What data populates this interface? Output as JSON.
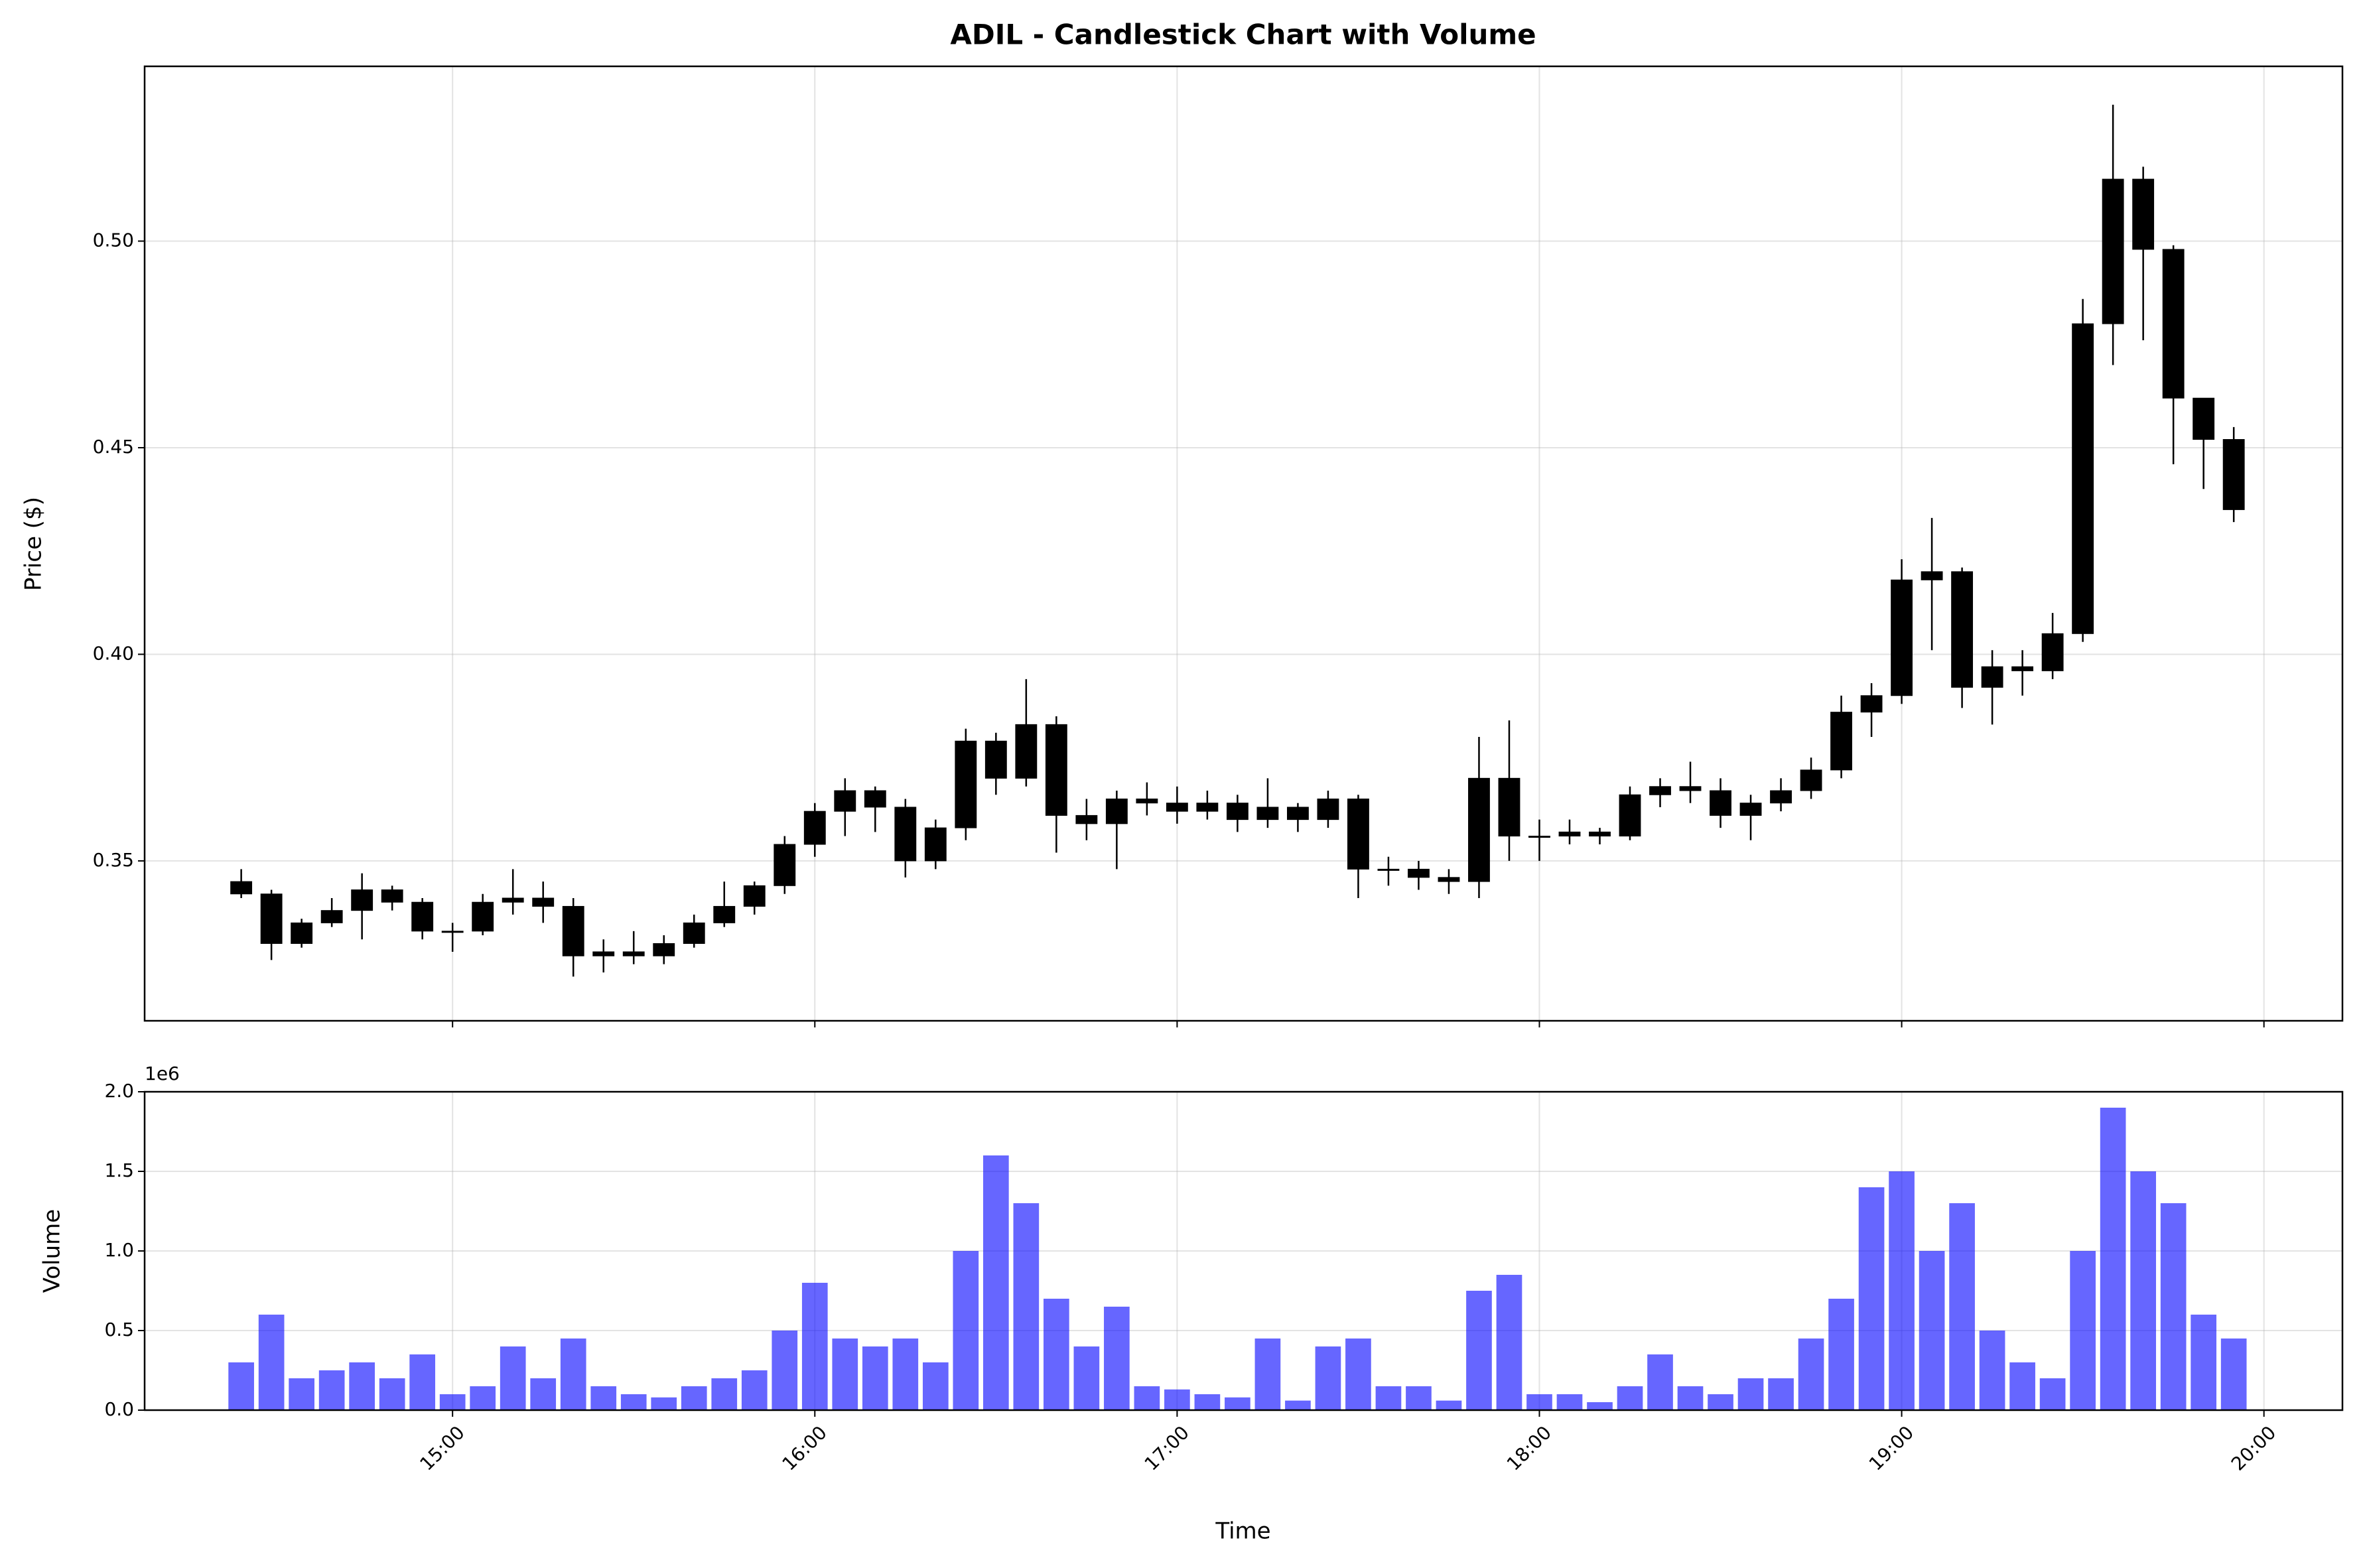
{
  "chart_data": {
    "type": "candlestick",
    "title": "ADIL - Candlestick Chart with Volume",
    "xlabel": "Time",
    "ylabel": "Price ($)",
    "color": "#000000",
    "grid": true,
    "x": [
      "14:25",
      "14:30",
      "14:35",
      "14:40",
      "14:45",
      "14:50",
      "14:55",
      "15:00",
      "15:05",
      "15:10",
      "15:15",
      "15:20",
      "15:25",
      "15:30",
      "15:35",
      "15:40",
      "15:45",
      "15:50",
      "15:55",
      "16:00",
      "16:05",
      "16:10",
      "16:15",
      "16:20",
      "16:25",
      "16:30",
      "16:35",
      "16:40",
      "16:45",
      "16:50",
      "16:55",
      "17:00",
      "17:05",
      "17:10",
      "17:15",
      "17:20",
      "17:25",
      "17:30",
      "17:35",
      "17:40",
      "17:45",
      "17:50",
      "17:55",
      "18:00",
      "18:05",
      "18:10",
      "18:15",
      "18:20",
      "18:25",
      "18:30",
      "18:35",
      "18:40",
      "18:45",
      "18:50",
      "18:55",
      "19:00",
      "19:05",
      "19:10",
      "19:15",
      "19:20",
      "19:25",
      "19:30",
      "19:35",
      "19:40",
      "19:45",
      "19:50",
      "19:55"
    ],
    "open": [
      0.345,
      0.342,
      0.33,
      0.335,
      0.338,
      0.343,
      0.34,
      0.333,
      0.333,
      0.34,
      0.341,
      0.339,
      0.327,
      0.328,
      0.327,
      0.33,
      0.335,
      0.339,
      0.344,
      0.354,
      0.362,
      0.367,
      0.363,
      0.35,
      0.358,
      0.379,
      0.37,
      0.383,
      0.361,
      0.359,
      0.365,
      0.364,
      0.362,
      0.364,
      0.36,
      0.363,
      0.36,
      0.365,
      0.348,
      0.348,
      0.346,
      0.345,
      0.37,
      0.356,
      0.356,
      0.357,
      0.356,
      0.366,
      0.368,
      0.367,
      0.361,
      0.364,
      0.367,
      0.372,
      0.386,
      0.39,
      0.418,
      0.42,
      0.392,
      0.397,
      0.396,
      0.405,
      0.48,
      0.515,
      0.498,
      0.462,
      0.452
    ],
    "high": [
      0.348,
      0.343,
      0.336,
      0.341,
      0.347,
      0.344,
      0.341,
      0.335,
      0.342,
      0.348,
      0.345,
      0.341,
      0.331,
      0.333,
      0.332,
      0.337,
      0.345,
      0.345,
      0.356,
      0.364,
      0.37,
      0.368,
      0.365,
      0.36,
      0.382,
      0.381,
      0.394,
      0.385,
      0.365,
      0.367,
      0.369,
      0.368,
      0.367,
      0.366,
      0.37,
      0.364,
      0.367,
      0.366,
      0.351,
      0.35,
      0.348,
      0.38,
      0.384,
      0.36,
      0.36,
      0.358,
      0.368,
      0.37,
      0.374,
      0.37,
      0.366,
      0.37,
      0.375,
      0.39,
      0.393,
      0.423,
      0.433,
      0.421,
      0.401,
      0.401,
      0.41,
      0.486,
      0.533,
      0.518,
      0.499,
      0.462,
      0.455
    ],
    "low": [
      0.341,
      0.326,
      0.329,
      0.334,
      0.331,
      0.338,
      0.331,
      0.328,
      0.332,
      0.337,
      0.335,
      0.322,
      0.323,
      0.325,
      0.325,
      0.329,
      0.334,
      0.337,
      0.342,
      0.351,
      0.356,
      0.357,
      0.346,
      0.348,
      0.355,
      0.366,
      0.368,
      0.352,
      0.355,
      0.348,
      0.361,
      0.359,
      0.36,
      0.357,
      0.358,
      0.357,
      0.358,
      0.341,
      0.344,
      0.343,
      0.342,
      0.341,
      0.35,
      0.35,
      0.354,
      0.354,
      0.355,
      0.363,
      0.364,
      0.358,
      0.355,
      0.362,
      0.365,
      0.37,
      0.38,
      0.388,
      0.401,
      0.387,
      0.383,
      0.39,
      0.394,
      0.403,
      0.47,
      0.476,
      0.446,
      0.44,
      0.432
    ],
    "close": [
      0.342,
      0.33,
      0.335,
      0.338,
      0.343,
      0.34,
      0.333,
      0.333,
      0.34,
      0.341,
      0.339,
      0.327,
      0.328,
      0.327,
      0.33,
      0.335,
      0.339,
      0.344,
      0.354,
      0.362,
      0.367,
      0.363,
      0.35,
      0.358,
      0.379,
      0.37,
      0.383,
      0.361,
      0.359,
      0.365,
      0.364,
      0.362,
      0.364,
      0.36,
      0.363,
      0.36,
      0.365,
      0.348,
      0.348,
      0.346,
      0.345,
      0.37,
      0.356,
      0.356,
      0.357,
      0.356,
      0.366,
      0.368,
      0.367,
      0.361,
      0.364,
      0.367,
      0.372,
      0.386,
      0.39,
      0.418,
      0.42,
      0.392,
      0.397,
      0.396,
      0.405,
      0.48,
      0.515,
      0.498,
      0.462,
      0.452,
      0.435
    ],
    "xlim": [
      "14:09",
      "20:13"
    ],
    "xticks": [
      "15:00",
      "16:00",
      "17:00",
      "18:00",
      "19:00",
      "20:00"
    ],
    "ylim": [
      0.3113,
      0.5423
    ],
    "yticks": [
      0.35,
      {
        "value": 0.4,
        "label": "0.40"
      },
      0.45,
      {
        "value": 0.5,
        "label": "0.50"
      }
    ],
    "volume": {
      "ylabel": "Volume",
      "color": "#0000ff",
      "offset_label": "1e6",
      "values": [
        300000,
        600000,
        200000,
        250000,
        300000,
        200000,
        350000,
        100000,
        150000,
        400000,
        200000,
        450000,
        150000,
        100000,
        80000,
        150000,
        200000,
        250000,
        500000,
        800000,
        450000,
        400000,
        450000,
        300000,
        1000000,
        1600000,
        1300000,
        700000,
        400000,
        650000,
        150000,
        130000,
        100000,
        80000,
        450000,
        60000,
        400000,
        450000,
        150000,
        150000,
        60000,
        750000,
        850000,
        100000,
        100000,
        50000,
        150000,
        350000,
        150000,
        100000,
        200000,
        200000,
        450000,
        700000,
        1400000,
        1500000,
        1000000,
        1300000,
        500000,
        300000,
        200000,
        1000000,
        1900000,
        1500000,
        1300000,
        600000,
        450000
      ],
      "ylim": [
        0,
        2000000
      ],
      "yticks": [
        {
          "value": 0,
          "label": "0.0"
        },
        {
          "value": 500000,
          "label": "0.5"
        },
        {
          "value": 1000000,
          "label": "1.0"
        },
        {
          "value": 1500000,
          "label": "1.5"
        },
        {
          "value": 2000000,
          "label": "2.0"
        }
      ]
    }
  }
}
